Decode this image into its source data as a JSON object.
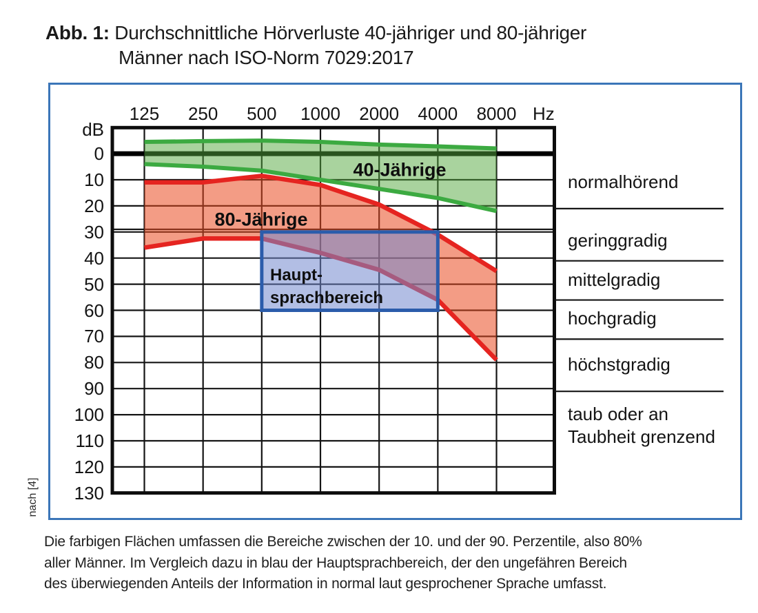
{
  "figure": {
    "title_prefix": "Abb. 1:",
    "title_line1": "Durchschnittliche Hörverluste 40-jähriger und 80-jähriger",
    "title_line2": "Männer nach ISO-Norm 7029:2017",
    "source_note": "nach [4]",
    "caption_line1": "Die farbigen Flächen umfassen die Bereiche zwischen der 10. und der 90. Perzentile, also 80%",
    "caption_line2": "aller Männer. Im Vergleich dazu in blau der Hauptsprachbereich, der den ungefähren Bereich",
    "caption_line3": "des überwiegenden Anteils der Information in normal laut gesprochener Sprache umfasst.",
    "box_border_color": "#3b76b8"
  },
  "chart_data": {
    "type": "area",
    "x_unit_label": "Hz",
    "y_unit_label": "dB",
    "frequencies_hz": [
      125,
      250,
      500,
      1000,
      2000,
      4000,
      8000
    ],
    "y_ticks_db": [
      0,
      10,
      20,
      30,
      40,
      50,
      60,
      70,
      80,
      90,
      100,
      110,
      120,
      130
    ],
    "ylim_db": [
      -10,
      130
    ],
    "zero_line_db": 0,
    "extra_line_db": 29,
    "grid": true,
    "series": [
      {
        "name": "40-Jährige",
        "upper_db": [
          -4.5,
          -4.8,
          -5,
          -4.5,
          -3.5,
          -2.8,
          -2
        ],
        "lower_db": [
          4,
          5,
          6.5,
          10,
          13.5,
          17,
          22
        ],
        "line_color": "#3caa41",
        "fill_color": "#53a83e"
      },
      {
        "name": "80-Jährige",
        "upper_db": [
          11,
          11,
          8.5,
          12,
          19.5,
          31,
          45
        ],
        "lower_db": [
          36,
          32.5,
          32.5,
          38,
          44.5,
          56,
          79
        ],
        "line_color": "#e52420",
        "fill_color": "#ea4a20"
      }
    ],
    "speech_area": {
      "label_line1": "Haupt-",
      "label_line2": "sprachbereich",
      "freq_range_hz": [
        500,
        4000
      ],
      "db_range": [
        30,
        60
      ],
      "border_color": "#2b5cab",
      "fill_color": "#7288cd"
    },
    "classifications": {
      "labels": [
        "normalhörend",
        "geringgradig",
        "mittelgradig",
        "hochgradig",
        "höchstgradig",
        "taub oder an\nTaubheit grenzend"
      ],
      "boundaries_db": [
        20,
        40,
        55,
        70,
        90
      ]
    }
  }
}
